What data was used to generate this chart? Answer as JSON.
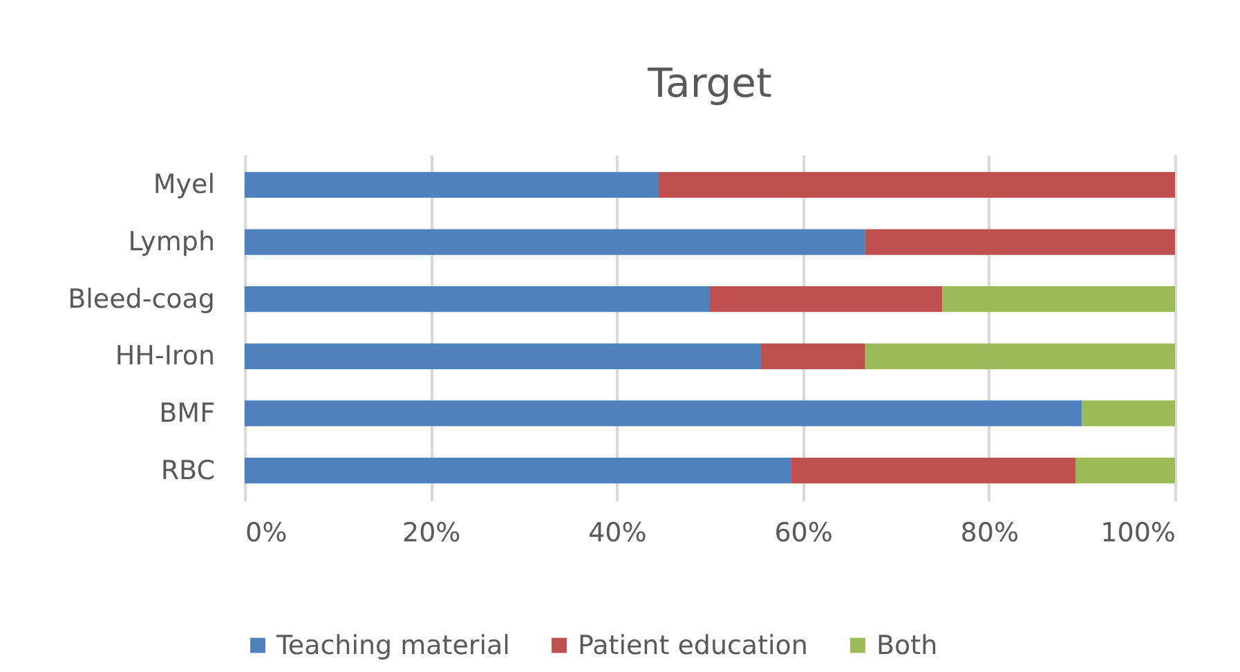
{
  "chart_data": {
    "type": "bar",
    "orientation": "horizontal",
    "stacked": true,
    "title": "Target",
    "categories": [
      "Myel",
      "Lymph",
      "Bleed-coag",
      "HH-Iron",
      "BMF",
      "RBC"
    ],
    "series": [
      {
        "name": "Teaching material",
        "color": "#4f81bd",
        "values": [
          44.5,
          66.7,
          50,
          55.5,
          90,
          58.7
        ]
      },
      {
        "name": "Patient education",
        "color": "#c0504d",
        "values": [
          55.5,
          33.3,
          25,
          11.2,
          0,
          30.6
        ]
      },
      {
        "name": "Both",
        "color": "#9bbb59",
        "values": [
          0,
          0,
          25,
          33.3,
          10,
          10.7
        ]
      }
    ],
    "xlim": [
      0,
      100
    ],
    "xticks": [
      {
        "value": 0,
        "label": "0%"
      },
      {
        "value": 20,
        "label": "20%"
      },
      {
        "value": 40,
        "label": "40%"
      },
      {
        "value": 60,
        "label": "60%"
      },
      {
        "value": 80,
        "label": "80%"
      },
      {
        "value": 100,
        "label": "100%"
      }
    ],
    "grid": "x",
    "legend": "bottom"
  }
}
